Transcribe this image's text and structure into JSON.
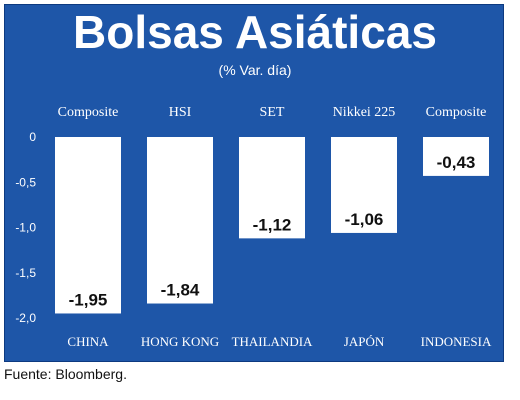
{
  "title": "Bolsas Asiáticas",
  "subtitle": "(% Var. día)",
  "source": "Fuente: Bloomberg.",
  "colors": {
    "panel": "#1e56a8",
    "bars": "#ffffff",
    "text": "#ffffff",
    "value_text": "#111111"
  },
  "chart_data": {
    "type": "bar",
    "title": "Bolsas Asiáticas",
    "subtitle": "(% Var. día)",
    "categories": [
      "CHINA",
      "HONG KONG",
      "THAILANDIA",
      "JAPÓN",
      "INDONESIA"
    ],
    "index_names": [
      "Composite",
      "HSI",
      "SET",
      "Nikkei 225",
      "Composite"
    ],
    "values": [
      -1.95,
      -1.84,
      -1.12,
      -1.06,
      -0.43
    ],
    "value_labels": [
      "-1,95",
      "-1,84",
      "-1,12",
      "-1,06",
      "-0,43"
    ],
    "yticks": [
      0,
      -0.5,
      -1.0,
      -1.5,
      -2.0
    ],
    "ytick_labels": [
      "0",
      "-0,5",
      "-1,0",
      "-1,5",
      "-2,0"
    ],
    "ylim": [
      -2.0,
      0
    ],
    "grid": false,
    "legend": "none"
  }
}
